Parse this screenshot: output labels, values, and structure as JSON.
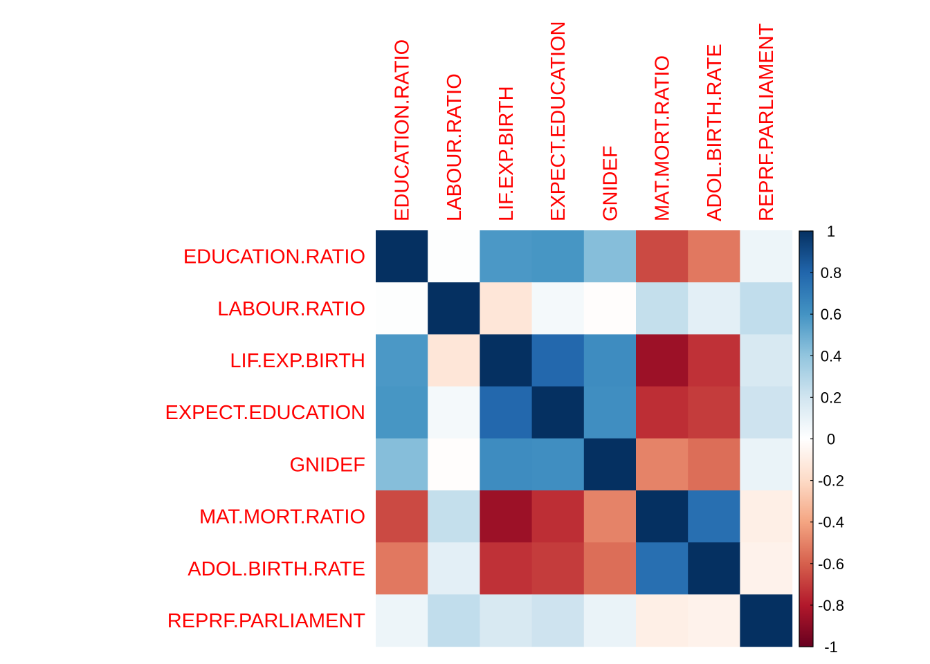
{
  "chart_data": {
    "type": "heatmap",
    "title": "",
    "variables": [
      "EDUCATION.RATIO",
      "LABOUR.RATIO",
      "LIF.EXP.BIRTH",
      "EXPECT.EDUCATION",
      "GNIDEF",
      "MAT.MORT.RATIO",
      "ADOL.BIRTH.RATE",
      "REPRF.PARLIAMENT"
    ],
    "row_labels": [
      "EDUCATION.RATIO",
      "LABOUR.RATIO",
      "LIF.EXP.BIRTH",
      "EXPECT.EDUCATION",
      "GNIDEF",
      "MAT.MORT.RATIO",
      "ADOL.BIRTH.RATE",
      "REPRF.PARLIAMENT"
    ],
    "col_labels": [
      "EDUCATION.RATIO",
      "LABOUR.RATIO",
      "LIF.EXP.BIRTH",
      "EXPECT.EDUCATION",
      "GNIDEF",
      "MAT.MORT.RATIO",
      "ADOL.BIRTH.RATE",
      "REPRF.PARLIAMENT"
    ],
    "values": [
      [
        1.0,
        0.01,
        0.58,
        0.59,
        0.43,
        -0.66,
        -0.53,
        0.08
      ],
      [
        0.01,
        1.0,
        -0.14,
        0.05,
        -0.01,
        0.24,
        0.12,
        0.25
      ],
      [
        0.58,
        -0.14,
        1.0,
        0.79,
        0.63,
        -0.86,
        -0.73,
        0.17
      ],
      [
        0.59,
        0.05,
        0.79,
        1.0,
        0.62,
        -0.74,
        -0.7,
        0.21
      ],
      [
        0.43,
        -0.01,
        0.63,
        0.62,
        1.0,
        -0.5,
        -0.56,
        0.09
      ],
      [
        -0.66,
        0.24,
        -0.86,
        -0.74,
        -0.5,
        1.0,
        0.76,
        -0.09
      ],
      [
        -0.53,
        0.12,
        -0.73,
        -0.7,
        -0.56,
        0.76,
        1.0,
        -0.07
      ],
      [
        0.08,
        0.25,
        0.17,
        0.21,
        0.09,
        -0.09,
        -0.07,
        1.0
      ]
    ],
    "value_range": [
      -1,
      1
    ],
    "colorbar": {
      "ticks": [
        1,
        0.8,
        0.6,
        0.4,
        0.2,
        0,
        -0.2,
        -0.4,
        -0.6,
        -0.8,
        -1
      ],
      "tick_labels": [
        "1",
        "0.8",
        "0.6",
        "0.4",
        "0.2",
        "0",
        "-0.2",
        "-0.4",
        "-0.6",
        "-0.8",
        "-1"
      ]
    },
    "color_scale": [
      "#67001f",
      "#b2182b",
      "#d6604d",
      "#f4a582",
      "#fddbc7",
      "#ffffff",
      "#d1e5f0",
      "#92c5de",
      "#4393c3",
      "#2166ac",
      "#053061"
    ],
    "label_color": "#ff0000",
    "xlabel": "",
    "ylabel": ""
  }
}
